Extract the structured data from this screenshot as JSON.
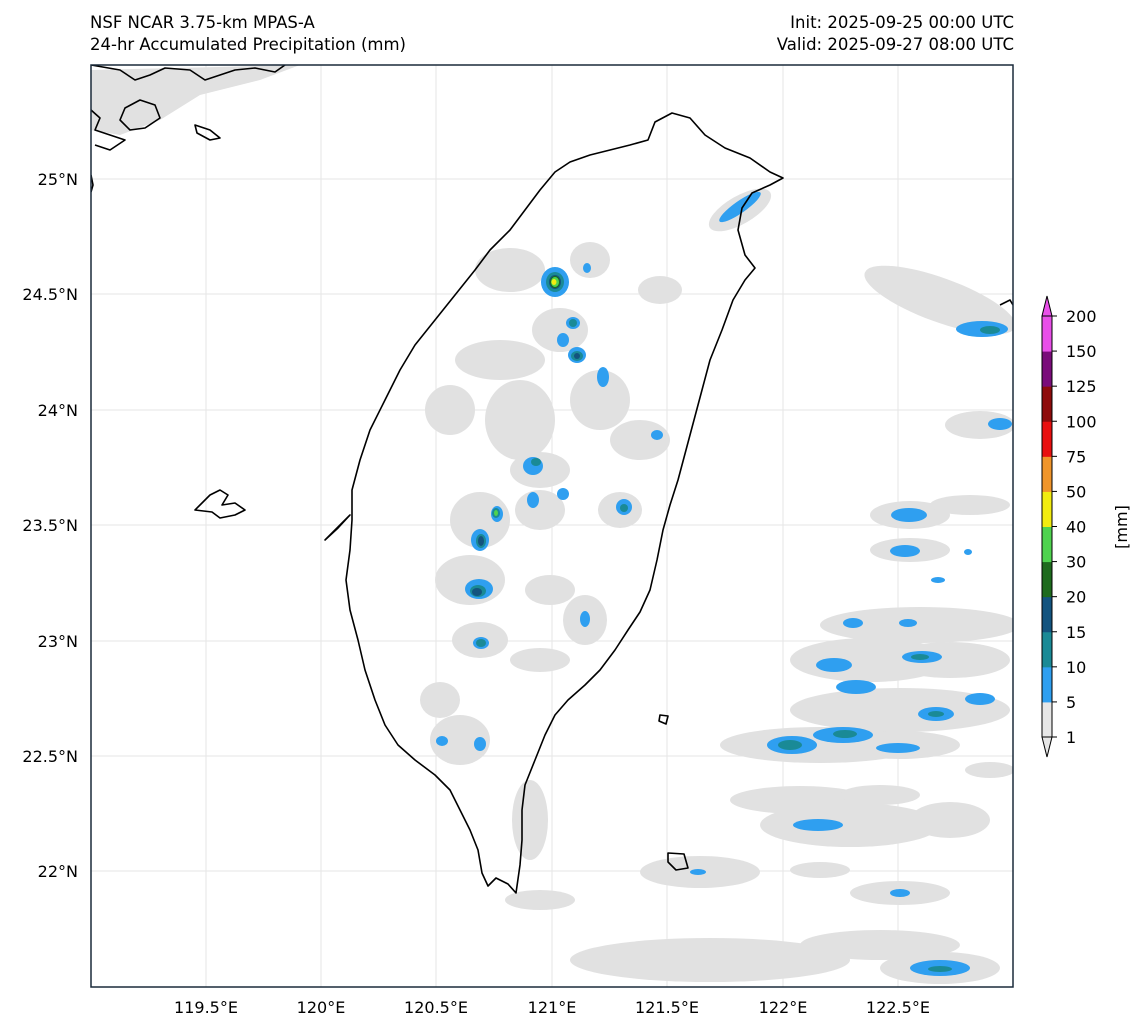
{
  "header": {
    "model": "NSF NCAR 3.75-km MPAS-A",
    "field": "24-hr Accumulated Precipitation (mm)",
    "init": "Init: 2025-09-25 00:00 UTC",
    "valid": "Valid: 2025-09-27 08:00 UTC"
  },
  "map": {
    "lat_labels": [
      "25°N",
      "24.5°N",
      "24°N",
      "23.5°N",
      "23°N",
      "22.5°N",
      "22°N"
    ],
    "lon_labels": [
      "119.5°E",
      "120°E",
      "120.5°E",
      "121°E",
      "121.5°E",
      "122°E",
      "122.5°E"
    ],
    "colors": {
      "land_outline": "#000000",
      "gridline": "#e6e6e6",
      "trace": "#e1e1e1",
      "light": "#2f9ff0",
      "moderate": "#1a8a96",
      "heavy": "#13547f",
      "green": "#1c6b1c",
      "yellow": "#f2ec10"
    }
  },
  "colorbar": {
    "label": "[mm]",
    "ticks": [
      "1",
      "5",
      "10",
      "15",
      "20",
      "30",
      "40",
      "50",
      "75",
      "100",
      "125",
      "150",
      "200"
    ],
    "colors": [
      "#e6e6e6",
      "#2f9ff0",
      "#1a8a96",
      "#13547f",
      "#1e6b1e",
      "#4fd34f",
      "#f2ec10",
      "#f0952a",
      "#e81010",
      "#8e0c0c",
      "#7a0c7a",
      "#e84fe8"
    ]
  }
}
